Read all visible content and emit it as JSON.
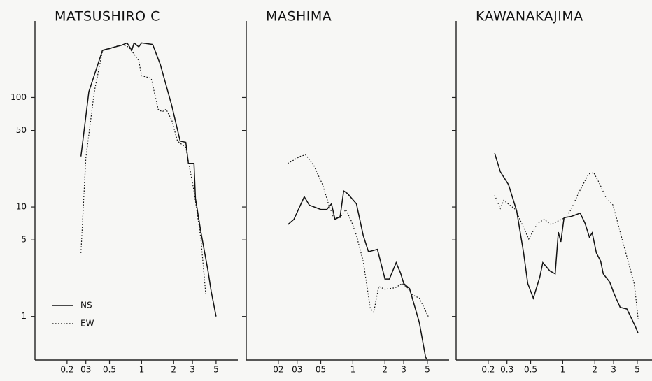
{
  "chart_data": [
    {
      "type": "line",
      "title": "MATSUSHIRO C",
      "xscale": "log",
      "yscale": "log",
      "xlim": [
        0.1,
        8
      ],
      "ylim": [
        0.4,
        500
      ],
      "xticks": [
        0.2,
        {
          "value": 0.3,
          "label": "03"
        },
        0.5,
        1,
        2,
        3,
        5
      ],
      "yticks": [
        1,
        5,
        10,
        50,
        100
      ],
      "ytick_labels": true,
      "legend": "lower left",
      "series": [
        {
          "name": "NS",
          "color": "#111111",
          "style": "solid",
          "x": [
            0.27,
            0.32,
            0.43,
            0.65,
            0.73,
            0.81,
            0.85,
            0.94,
            1.0,
            1.27,
            1.5,
            1.92,
            2.3,
            2.6,
            2.75,
            3.1,
            3.2,
            3.6,
            4.2,
            4.5,
            5.0
          ],
          "values": [
            29,
            113,
            270,
            300,
            315,
            270,
            315,
            290,
            315,
            305,
            200,
            84,
            40,
            39,
            25,
            25,
            12,
            5.9,
            2.6,
            1.7,
            1.0
          ]
        },
        {
          "name": "EW",
          "color": "#111111",
          "style": "dotted",
          "x": [
            0.27,
            0.3,
            0.36,
            0.43,
            0.65,
            0.75,
            0.85,
            0.94,
            1.0,
            1.23,
            1.43,
            1.56,
            1.7,
            1.92,
            2.17,
            2.6,
            3.1,
            3.6,
            4.0
          ],
          "values": [
            3.8,
            28,
            113,
            265,
            305,
            290,
            250,
            218,
            158,
            150,
            78,
            74,
            78,
            62,
            40,
            35,
            14,
            5.1,
            1.6
          ]
        }
      ]
    },
    {
      "type": "line",
      "title": "MASHIMA",
      "xscale": "log",
      "yscale": "log",
      "xlim": [
        0.1,
        8
      ],
      "ylim": [
        0.4,
        500
      ],
      "xticks": [
        {
          "value": 0.2,
          "label": "02"
        },
        {
          "value": 0.3,
          "label": "03"
        },
        {
          "value": 0.5,
          "label": "05"
        },
        1,
        2,
        3,
        5
      ],
      "yticks": [
        1,
        5,
        10,
        50,
        100
      ],
      "ytick_labels": false,
      "series": [
        {
          "color": "#111111",
          "style": "solid",
          "x": [
            0.245,
            0.28,
            0.35,
            0.39,
            0.5,
            0.57,
            0.63,
            0.68,
            0.76,
            0.82,
            0.89,
            1.08,
            1.25,
            1.4,
            1.7,
            2.0,
            2.2,
            2.55,
            2.8,
            3.0,
            3.4,
            4.2,
            4.8,
            4.9
          ],
          "values": [
            6.9,
            7.7,
            12.4,
            10.4,
            9.5,
            9.5,
            10.7,
            7.7,
            8.2,
            14,
            13.3,
            10.7,
            5.5,
            3.9,
            4.1,
            2.2,
            2.2,
            3.1,
            2.5,
            2.0,
            1.8,
            0.88,
            0.43,
            0.41
          ]
        },
        {
          "color": "#111111",
          "style": "dotted",
          "x": [
            0.245,
            0.32,
            0.36,
            0.43,
            0.52,
            0.59,
            0.66,
            0.76,
            0.86,
            0.97,
            1.08,
            1.25,
            1.46,
            1.57,
            1.75,
            2.0,
            2.5,
            2.9,
            3.25,
            3.6,
            4.2,
            5.1
          ],
          "values": [
            25,
            29,
            30,
            24,
            16,
            10.7,
            8.0,
            8.0,
            9.5,
            7.4,
            5.5,
            3.2,
            1.18,
            1.09,
            1.88,
            1.77,
            1.83,
            2.0,
            1.83,
            1.58,
            1.47,
            1.0
          ]
        }
      ]
    },
    {
      "type": "line",
      "title": "KAWANAKAJIMA",
      "xscale": "log",
      "yscale": "log",
      "xlim": [
        0.1,
        8
      ],
      "ylim": [
        0.4,
        500
      ],
      "xticks": [
        0.2,
        0.3,
        0.5,
        1,
        2,
        3,
        5
      ],
      "yticks": [
        1,
        5,
        10,
        50,
        100
      ],
      "ytick_labels": false,
      "series": [
        {
          "color": "#111111",
          "style": "solid",
          "x": [
            0.23,
            0.26,
            0.31,
            0.37,
            0.43,
            0.47,
            0.53,
            0.61,
            0.65,
            0.76,
            0.85,
            0.91,
            0.96,
            1.03,
            1.2,
            1.46,
            1.62,
            1.78,
            1.89,
            2.07,
            2.27,
            2.4,
            2.76,
            3.06,
            3.46,
            4.0,
            4.8,
            5.1
          ],
          "values": [
            31,
            21,
            16,
            9.2,
            3.8,
            2.0,
            1.47,
            2.3,
            3.1,
            2.6,
            2.45,
            5.9,
            4.8,
            8.0,
            8.2,
            8.8,
            7.1,
            5.3,
            5.8,
            3.8,
            3.2,
            2.45,
            2.06,
            1.58,
            1.21,
            1.17,
            0.81,
            0.7
          ]
        },
        {
          "color": "#111111",
          "style": "dotted",
          "x": [
            0.23,
            0.26,
            0.28,
            0.36,
            0.48,
            0.58,
            0.67,
            0.78,
            0.89,
            1.06,
            1.2,
            1.4,
            1.75,
            1.95,
            2.2,
            2.56,
            2.97,
            3.46,
            4.0,
            4.7,
            5.1
          ],
          "values": [
            12.8,
            9.7,
            11.5,
            9.5,
            5.1,
            7.1,
            7.7,
            6.9,
            7.4,
            8.0,
            9.5,
            13.3,
            20,
            20.6,
            16.6,
            12,
            10.4,
            5.9,
            3.5,
            1.97,
            0.94
          ]
        }
      ]
    }
  ]
}
